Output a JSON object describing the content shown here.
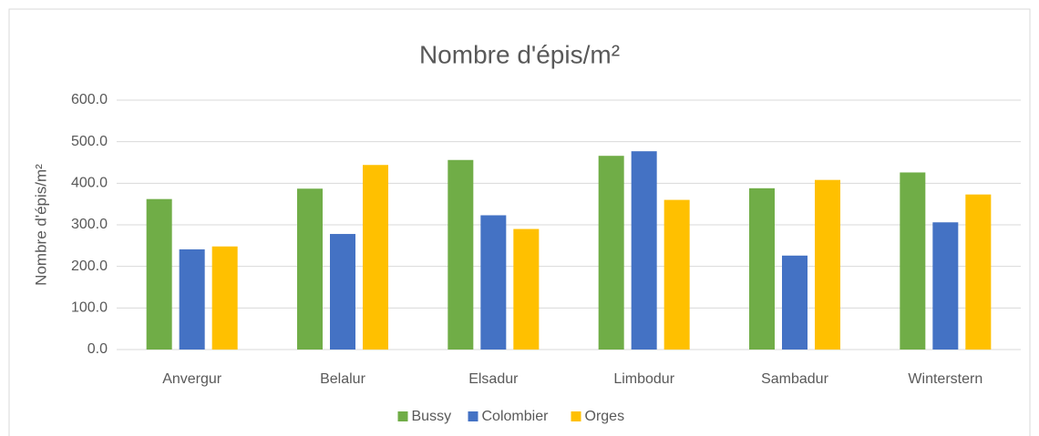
{
  "chart_data": {
    "type": "bar",
    "title": "Nombre d'épis/m²",
    "y_label": "Nombre d'épis/m²",
    "categories": [
      "Anvergur",
      "Belalur",
      "Elsadur",
      "Limbodur",
      "Sambadur",
      "Winterstern"
    ],
    "series": [
      {
        "name": "Bussy",
        "color": "#70ad47",
        "values": [
          362,
          387,
          456,
          466,
          388,
          426
        ]
      },
      {
        "name": "Colombier",
        "color": "#4472c4",
        "values": [
          241,
          278,
          323,
          477,
          226,
          306
        ]
      },
      {
        "name": "Orges",
        "color": "#ffc000",
        "values": [
          248,
          444,
          290,
          360,
          408,
          373
        ]
      }
    ],
    "ylim": [
      0,
      600
    ],
    "yticks": [
      {
        "value": 0,
        "label": "0.0"
      },
      {
        "value": 100,
        "label": "100.0"
      },
      {
        "value": 200,
        "label": "200.0"
      },
      {
        "value": 300,
        "label": "300.0"
      },
      {
        "value": 400,
        "label": "400.0"
      },
      {
        "value": 500,
        "label": "500.0"
      },
      {
        "value": 600,
        "label": "600.0"
      }
    ],
    "grid": true,
    "legend": "bottom"
  }
}
